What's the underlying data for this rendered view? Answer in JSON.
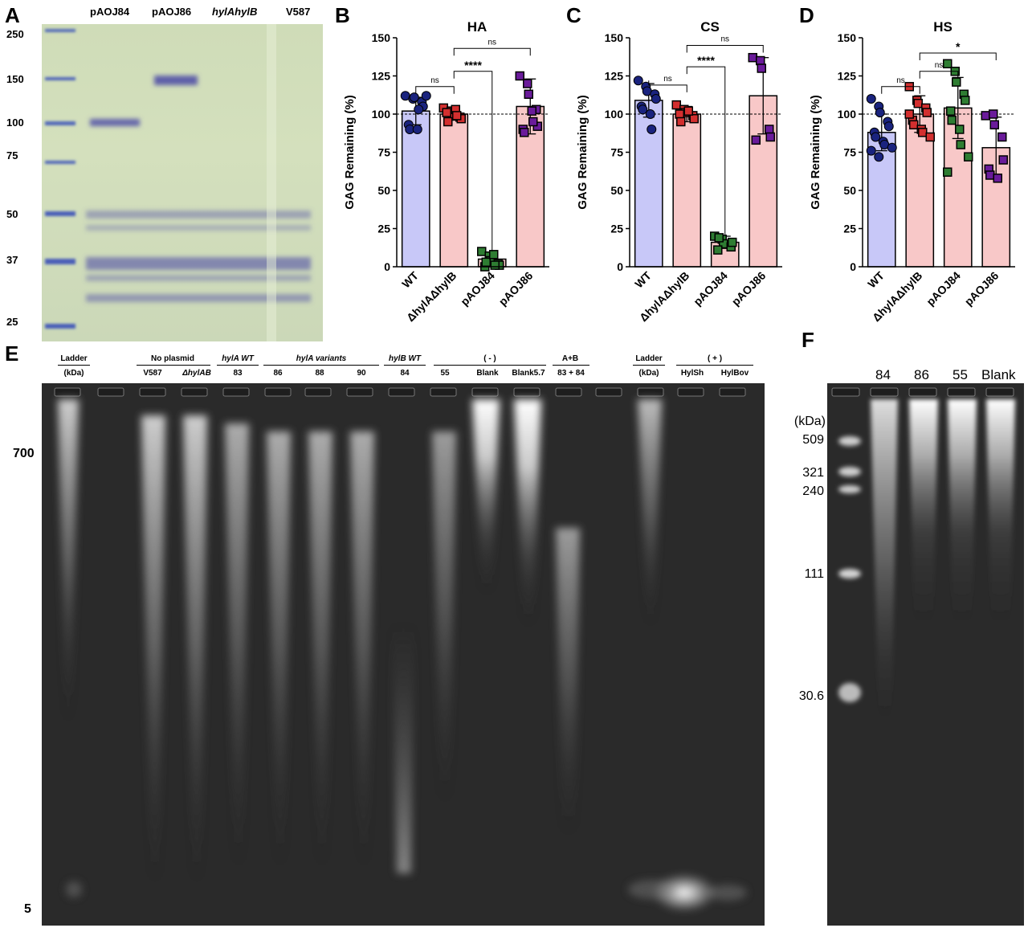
{
  "panels": {
    "A": {
      "letter": "A",
      "lane_labels": [
        "pAOJ84",
        "pAOJ86",
        "hylAhylB",
        "V587"
      ],
      "mw_ticks": [
        "250",
        "150",
        "100",
        "75",
        "50",
        "37",
        "25"
      ]
    },
    "E": {
      "letter": "E",
      "group_labels": [
        {
          "text": "Ladder",
          "sub": "(kDa)"
        },
        {
          "text": "No plasmid",
          "sub_items": [
            "V587",
            "ΔhylAB"
          ]
        },
        {
          "text": "hylA WT",
          "sub_items": [
            "83"
          ]
        },
        {
          "text": "hylA variants",
          "sub_items": [
            "86",
            "88",
            "90"
          ]
        },
        {
          "text": "hylB WT",
          "sub_items": [
            "84"
          ]
        },
        {
          "text": "( - )",
          "sub_items": [
            "55",
            "Blank",
            "Blank5.7"
          ]
        },
        {
          "text": "A+B",
          "sub_items": [
            "83 + 84"
          ]
        },
        {
          "text": "Ladder",
          "sub": "(kDa)"
        },
        {
          "text": "( + )",
          "sub_items": [
            "HylSh",
            "HylBov"
          ]
        }
      ],
      "markers": [
        "700",
        "5"
      ]
    },
    "F": {
      "letter": "F",
      "lane_labels": [
        "84",
        "86",
        "55",
        "Blank"
      ],
      "kda_label": "(kDa)",
      "markers": [
        "509",
        "321",
        "240",
        "111",
        "30.6"
      ]
    }
  },
  "chart_data": [
    {
      "panel": "B",
      "type": "bar",
      "title": "HA",
      "ylabel": "GAG  Remaining (%)",
      "ylim": [
        0,
        150
      ],
      "yticks": [
        0,
        25,
        50,
        75,
        100,
        125,
        150
      ],
      "reference_line": 100,
      "categories": [
        "WT",
        "ΔhylAΔhylB",
        "pAOJ84",
        "pAOJ86"
      ],
      "values": [
        102,
        100,
        5,
        105
      ],
      "errors": [
        9,
        4,
        4,
        18
      ],
      "colors": [
        "#c8c8f8",
        "#f8c8c8",
        "#f8c8c8",
        "#f8c8c8"
      ],
      "point_colors": [
        "#1a237e",
        "#d32f2f",
        "#2e7d32",
        "#6a1b9a"
      ],
      "points": [
        [
          112,
          110,
          111,
          108,
          105,
          93,
          90,
          90,
          103,
          112
        ],
        [
          104,
          102,
          100,
          98,
          97,
          101,
          95,
          103,
          99
        ],
        [
          10,
          7,
          4,
          2,
          1,
          0,
          3,
          8,
          1
        ],
        [
          125,
          120,
          113,
          103,
          92,
          90,
          88,
          102,
          95
        ]
      ],
      "significance": [
        {
          "from": 0,
          "to": 1,
          "label": "ns",
          "y": 118
        },
        {
          "from": 1,
          "to": 2,
          "label": "****",
          "y": 128
        },
        {
          "from": 1,
          "to": 3,
          "label": "ns",
          "y": 143
        }
      ]
    },
    {
      "panel": "C",
      "type": "bar",
      "title": "CS",
      "ylabel": "GAG  Remaining (%)",
      "ylim": [
        0,
        150
      ],
      "yticks": [
        0,
        25,
        50,
        75,
        100,
        125,
        150
      ],
      "reference_line": 100,
      "categories": [
        "WT",
        "ΔhylAΔhylB",
        "pAOJ84",
        "pAOJ86"
      ],
      "values": [
        109,
        100,
        16,
        112
      ],
      "errors": [
        11,
        5,
        4,
        25
      ],
      "colors": [
        "#c8c8f8",
        "#f8c8c8",
        "#f8c8c8",
        "#f8c8c8"
      ],
      "point_colors": [
        "#1a237e",
        "#d32f2f",
        "#2e7d32",
        "#6a1b9a"
      ],
      "points": [
        [
          122,
          118,
          115,
          113,
          110,
          105,
          103,
          100,
          90
        ],
        [
          106,
          103,
          101,
          99,
          97,
          100,
          95,
          102
        ],
        [
          20,
          18,
          15,
          13,
          16,
          11,
          19
        ],
        [
          137,
          135,
          130,
          90,
          85,
          83
        ]
      ],
      "significance": [
        {
          "from": 0,
          "to": 1,
          "label": "ns",
          "y": 119
        },
        {
          "from": 1,
          "to": 2,
          "label": "****",
          "y": 131
        },
        {
          "from": 1,
          "to": 3,
          "label": "ns",
          "y": 145
        }
      ]
    },
    {
      "panel": "D",
      "type": "bar",
      "title": "HS",
      "ylabel": "GAG  Remaining (%)",
      "ylim": [
        0,
        150
      ],
      "yticks": [
        0,
        25,
        50,
        75,
        100,
        125,
        150
      ],
      "reference_line": 100,
      "categories": [
        "WT",
        "ΔhylAΔhylB",
        "pAOJ84",
        "pAOJ86"
      ],
      "values": [
        88,
        100,
        104,
        78
      ],
      "errors": [
        12,
        12,
        20,
        20
      ],
      "colors": [
        "#c8c8f8",
        "#f8c8c8",
        "#f8c8c8",
        "#f8c8c8"
      ],
      "point_colors": [
        "#1a237e",
        "#d32f2f",
        "#2e7d32",
        "#6a1b9a"
      ],
      "points": [
        [
          110,
          105,
          101,
          95,
          92,
          88,
          85,
          82,
          80,
          78,
          76,
          72
        ],
        [
          118,
          109,
          107,
          104,
          101,
          96,
          93,
          90,
          88,
          85,
          100
        ],
        [
          133,
          128,
          121,
          113,
          109,
          102,
          96,
          90,
          80,
          72,
          62
        ],
        [
          99,
          100,
          93,
          85,
          70,
          64,
          60,
          58
        ]
      ],
      "significance": [
        {
          "from": 0,
          "to": 1,
          "label": "ns",
          "y": 118
        },
        {
          "from": 1,
          "to": 2,
          "label": "ns",
          "y": 128
        },
        {
          "from": 1,
          "to": 3,
          "label": "*",
          "y": 140
        }
      ]
    }
  ]
}
